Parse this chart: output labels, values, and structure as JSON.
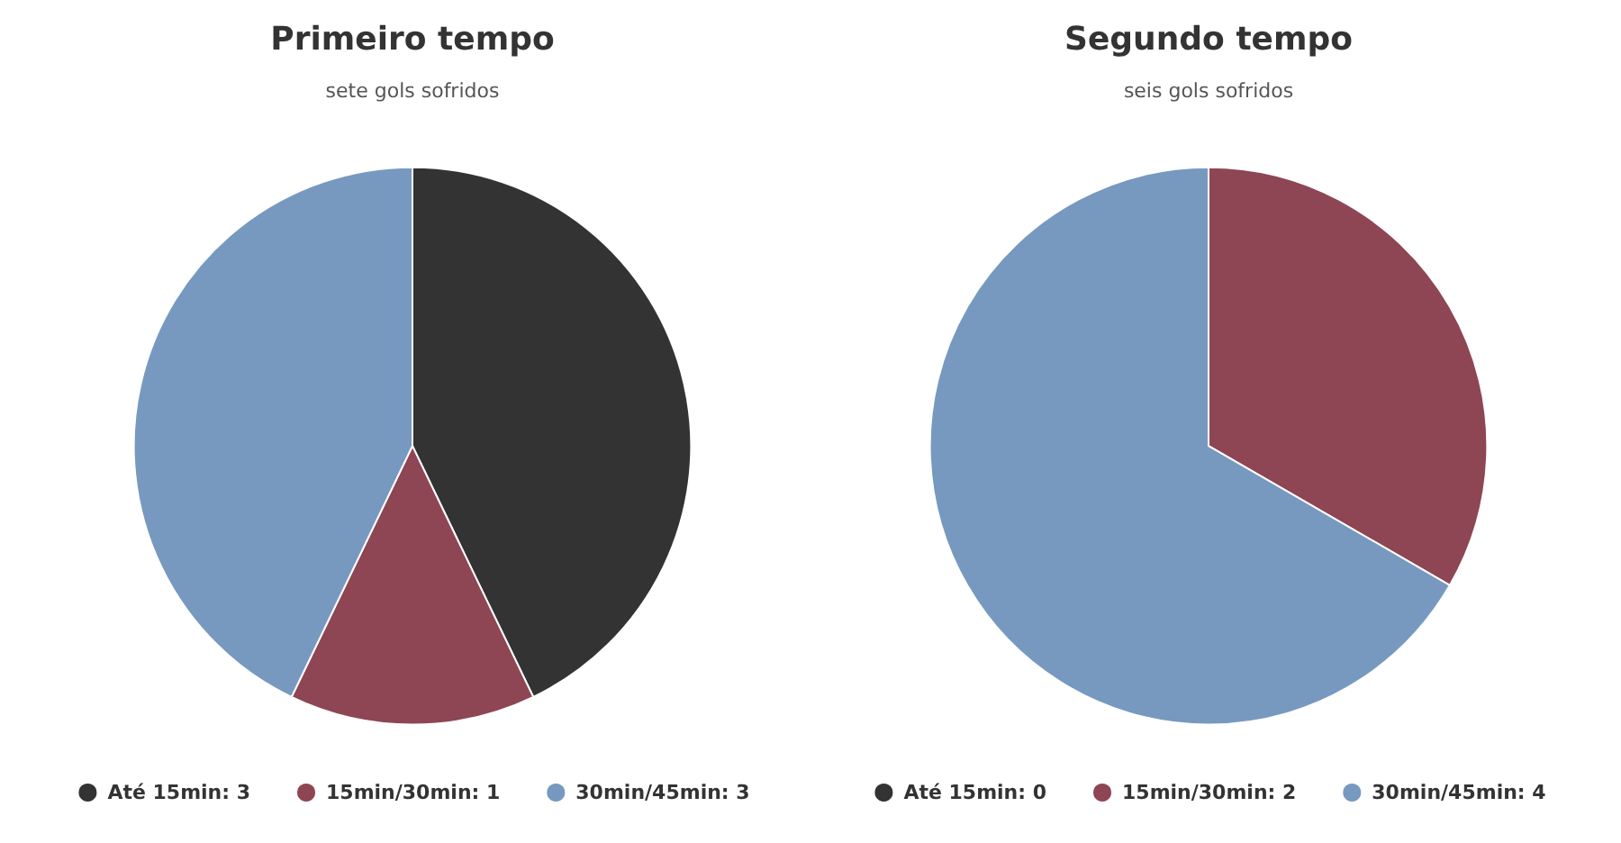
{
  "chart_data": [
    {
      "type": "pie",
      "title": "Primeiro tempo",
      "subtitle": "sete gols sofridos",
      "categories": [
        "Até 15min: 3",
        "15min/30min: 1",
        "30min/45min: 3"
      ],
      "values": [
        3,
        1,
        3
      ],
      "colors": [
        "#333333",
        "#8e4654",
        "#7799bf"
      ],
      "legend": "bottom"
    },
    {
      "type": "pie",
      "title": "Segundo tempo",
      "subtitle": "seis gols sofridos",
      "categories": [
        "Até 15min: 0",
        "15min/30min: 2",
        "30min/45min: 4"
      ],
      "values": [
        0,
        2,
        4
      ],
      "colors": [
        "#333333",
        "#8e4654",
        "#7799bf"
      ],
      "legend": "bottom"
    }
  ]
}
